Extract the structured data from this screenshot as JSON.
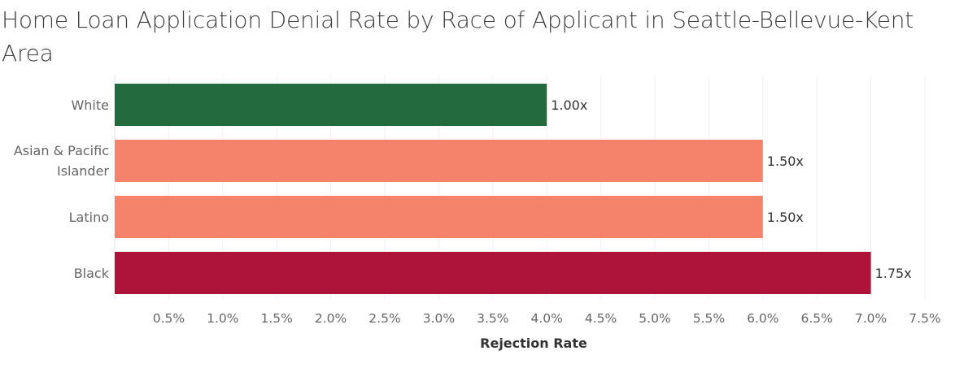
{
  "chart_data": {
    "type": "bar",
    "orientation": "horizontal",
    "title": "Home Loan Application Denial Rate by Race of Applicant in Seattle-Bellevue-Kent Area",
    "xlabel": "Rejection Rate",
    "ylabel": "",
    "xlim": [
      0,
      7.75
    ],
    "x_ticks": [
      "0.5%",
      "1.0%",
      "1.5%",
      "2.0%",
      "2.5%",
      "3.0%",
      "3.5%",
      "4.0%",
      "4.5%",
      "5.0%",
      "5.5%",
      "6.0%",
      "6.5%",
      "7.0%",
      "7.5%"
    ],
    "grid": "vertical",
    "bars": [
      {
        "category": "White",
        "value": 4.0,
        "label": "1.00x",
        "color": "#236a3e"
      },
      {
        "category": "Asian & Pacific Islander",
        "value": 6.0,
        "label": "1.50x",
        "color": "#f5836b"
      },
      {
        "category": "Latino",
        "value": 6.0,
        "label": "1.50x",
        "color": "#f5836b"
      },
      {
        "category": "Black",
        "value": 7.0,
        "label": "1.75x",
        "color": "#ad1438"
      }
    ]
  }
}
